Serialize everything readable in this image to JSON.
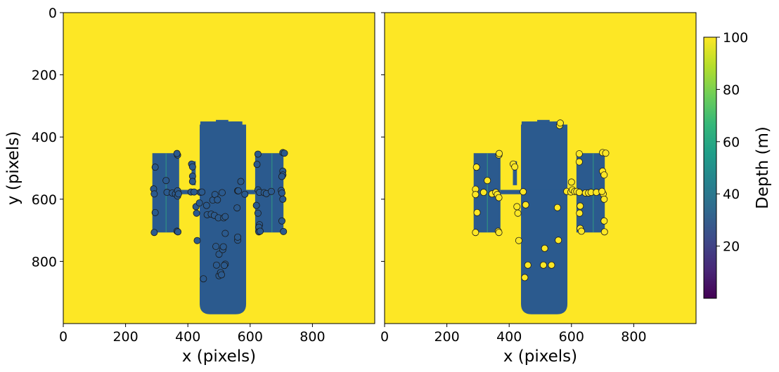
{
  "chart_data": [
    {
      "type": "heatmap",
      "subtype": "depth-map-with-scatter-samples",
      "xlabel": "x (pixels)",
      "ylabel": "y (pixels)",
      "xlim": [
        0,
        1000
      ],
      "ylim": [
        1000,
        0
      ],
      "xticks": [
        0,
        200,
        400,
        600,
        800
      ],
      "yticks": [
        0,
        200,
        400,
        600,
        800
      ],
      "background_depth": 100,
      "object_depth": 30,
      "sample_fill": "depth",
      "points": [
        [
          295,
          497
        ],
        [
          290,
          567
        ],
        [
          292,
          583
        ],
        [
          295,
          643
        ],
        [
          292,
          707
        ],
        [
          330,
          540
        ],
        [
          333,
          578
        ],
        [
          350,
          580
        ],
        [
          360,
          583
        ],
        [
          367,
          573
        ],
        [
          367,
          590
        ],
        [
          367,
          458
        ],
        [
          365,
          453
        ],
        [
          365,
          703
        ],
        [
          368,
          705
        ],
        [
          370,
          583
        ],
        [
          412,
          487
        ],
        [
          415,
          496
        ],
        [
          415,
          526
        ],
        [
          415,
          543
        ],
        [
          410,
          577
        ],
        [
          420,
          577
        ],
        [
          426,
          624
        ],
        [
          428,
          645
        ],
        [
          430,
          733
        ],
        [
          437,
          612
        ],
        [
          440,
          578
        ],
        [
          445,
          577
        ],
        [
          450,
          856
        ],
        [
          460,
          620
        ],
        [
          462,
          650
        ],
        [
          475,
          648
        ],
        [
          480,
          603
        ],
        [
          485,
          652
        ],
        [
          487,
          585
        ],
        [
          490,
          752
        ],
        [
          492,
          812
        ],
        [
          495,
          602
        ],
        [
          498,
          660
        ],
        [
          500,
          777
        ],
        [
          500,
          846
        ],
        [
          505,
          836
        ],
        [
          508,
          843
        ],
        [
          512,
          762
        ],
        [
          514,
          753
        ],
        [
          515,
          660
        ],
        [
          520,
          656
        ],
        [
          520,
          710
        ],
        [
          520,
          809
        ],
        [
          517,
          813
        ],
        [
          510,
          579
        ],
        [
          558,
          628
        ],
        [
          560,
          573
        ],
        [
          562,
          573
        ],
        [
          560,
          732
        ],
        [
          560,
          722
        ],
        [
          570,
          543
        ],
        [
          583,
          584
        ],
        [
          625,
          455
        ],
        [
          622,
          488
        ],
        [
          625,
          570
        ],
        [
          630,
          578
        ],
        [
          620,
          620
        ],
        [
          625,
          645
        ],
        [
          630,
          682
        ],
        [
          628,
          690
        ],
        [
          628,
          705
        ],
        [
          632,
          703
        ],
        [
          645,
          579
        ],
        [
          652,
          582
        ],
        [
          668,
          575
        ],
        [
          705,
          450
        ],
        [
          710,
          452
        ],
        [
          705,
          510
        ],
        [
          705,
          522
        ],
        [
          702,
          527
        ],
        [
          700,
          572
        ],
        [
          702,
          580
        ],
        [
          705,
          600
        ],
        [
          702,
          670
        ],
        [
          707,
          704
        ]
      ]
    },
    {
      "type": "heatmap",
      "subtype": "depth-map-with-scatter-samples",
      "xlabel": "x (pixels)",
      "ylabel": "",
      "xlim": [
        0,
        1000
      ],
      "ylim": [
        1000,
        0
      ],
      "xticks": [
        0,
        200,
        400,
        600,
        800
      ],
      "yticks": [
        0,
        200,
        400,
        600,
        800
      ],
      "background_depth": 100,
      "object_depth": 30,
      "sample_fill": "background",
      "points": [
        [
          295,
          497
        ],
        [
          292,
          568
        ],
        [
          292,
          585
        ],
        [
          297,
          643
        ],
        [
          292,
          707
        ],
        [
          318,
          578
        ],
        [
          330,
          540
        ],
        [
          345,
          583
        ],
        [
          357,
          578
        ],
        [
          362,
          585
        ],
        [
          367,
          595
        ],
        [
          367,
          458
        ],
        [
          368,
          453
        ],
        [
          365,
          703
        ],
        [
          367,
          707
        ],
        [
          413,
          487
        ],
        [
          418,
          496
        ],
        [
          425,
          624
        ],
        [
          428,
          645
        ],
        [
          431,
          733
        ],
        [
          445,
          576
        ],
        [
          450,
          852
        ],
        [
          453,
          618
        ],
        [
          460,
          812
        ],
        [
          510,
          812
        ],
        [
          514,
          758
        ],
        [
          536,
          812
        ],
        [
          555,
          627
        ],
        [
          558,
          732
        ],
        [
          562,
          363
        ],
        [
          564,
          355
        ],
        [
          585,
          575
        ],
        [
          598,
          577
        ],
        [
          600,
          545
        ],
        [
          603,
          570
        ],
        [
          610,
          575
        ],
        [
          617,
          575
        ],
        [
          625,
          454
        ],
        [
          625,
          480
        ],
        [
          625,
          578
        ],
        [
          628,
          622
        ],
        [
          626,
          645
        ],
        [
          628,
          694
        ],
        [
          632,
          703
        ],
        [
          645,
          580
        ],
        [
          655,
          580
        ],
        [
          663,
          578
        ],
        [
          680,
          578
        ],
        [
          700,
          450
        ],
        [
          710,
          452
        ],
        [
          700,
          510
        ],
        [
          705,
          522
        ],
        [
          702,
          583
        ],
        [
          705,
          600
        ],
        [
          705,
          670
        ],
        [
          706,
          705
        ],
        [
          698,
          575
        ]
      ]
    }
  ],
  "colorbar": {
    "label": "Depth (m)",
    "min": 0,
    "max": 100,
    "ticks": [
      20,
      40,
      60,
      80,
      100
    ],
    "colormap": "viridis",
    "stops": [
      "#440154",
      "#482878",
      "#3e4989",
      "#31688e",
      "#26828e",
      "#1f9e89",
      "#35b779",
      "#6ece58",
      "#b5de2b",
      "#fde725"
    ]
  },
  "colors": {
    "background": "#fde725",
    "object": "#2b5a8e",
    "point_edge": "#1a1a1a"
  }
}
